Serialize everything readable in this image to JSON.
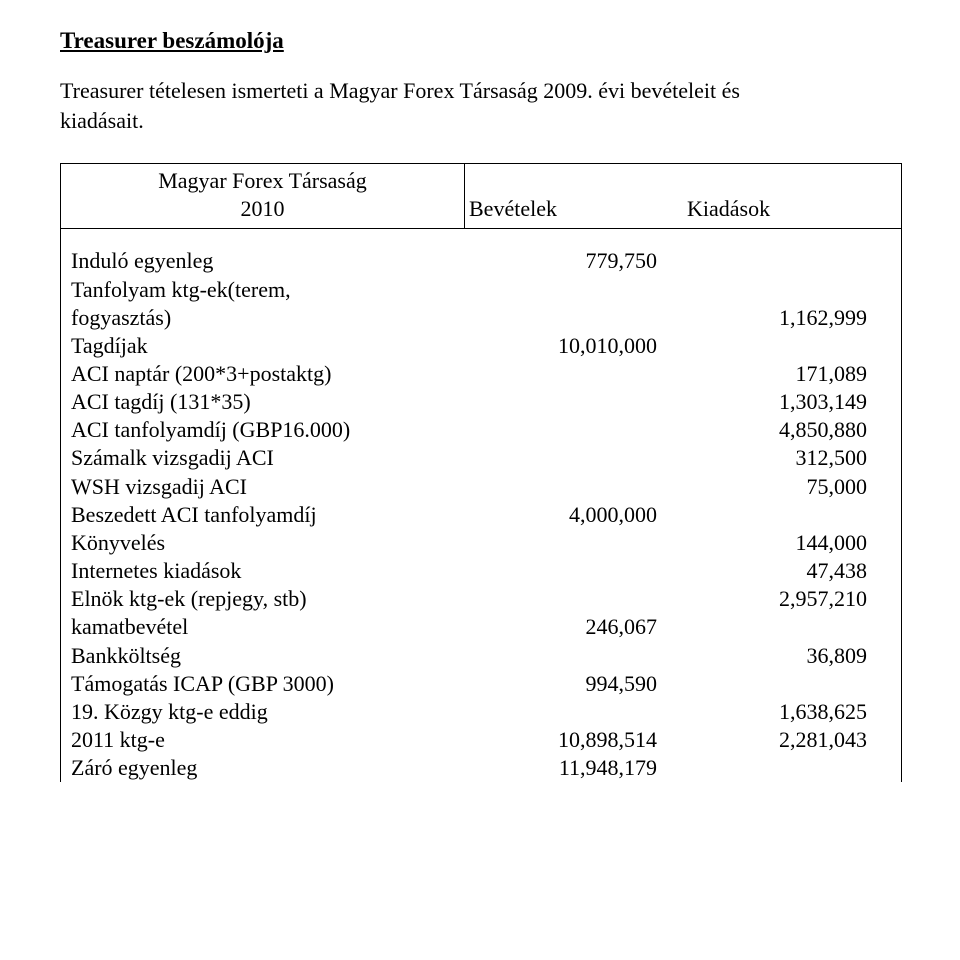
{
  "title": "Treasurer beszámolója",
  "intro_line1": "Treasurer  tételesen  ismerteti  a  Magyar  Forex  Társaság  2009.  évi  bevételeit  és",
  "intro_line2": "kiadásait.",
  "header": {
    "org": "Magyar Forex Társaság",
    "year": "2010",
    "col_bev": "Bevételek",
    "col_kia": "Kiadások"
  },
  "rows": [
    {
      "label": "Induló egyenleg",
      "bev": "779,750",
      "kia": ""
    },
    {
      "label": "Tanfolyam ktg-ek(terem,",
      "bev": "",
      "kia": ""
    },
    {
      "label": "fogyasztás)",
      "bev": "",
      "kia": "1,162,999"
    },
    {
      "label": "Tagdíjak",
      "bev": "10,010,000",
      "kia": ""
    },
    {
      "label": "ACI naptár (200*3+postaktg)",
      "bev": "",
      "kia": "171,089"
    },
    {
      "label": "ACI tagdíj (131*35)",
      "bev": "",
      "kia": "1,303,149"
    },
    {
      "label": "ACI tanfolyamdíj (GBP16.000)",
      "bev": "",
      "kia": "4,850,880"
    },
    {
      "label": "Számalk vizsgadij  ACI",
      "bev": "",
      "kia": "312,500"
    },
    {
      "label": "WSH vizsgadij  ACI",
      "bev": "",
      "kia": "75,000"
    },
    {
      "label": "Beszedett ACI tanfolyamdíj",
      "bev": "4,000,000",
      "kia": ""
    },
    {
      "label": "Könyvelés",
      "bev": "",
      "kia": "144,000"
    },
    {
      "label": "Internetes kiadások",
      "bev": "",
      "kia": "47,438"
    },
    {
      "label": "Elnök ktg-ek (repjegy, stb)",
      "bev": "",
      "kia": "2,957,210"
    },
    {
      "label": "kamatbevétel",
      "bev": "246,067",
      "kia": ""
    },
    {
      "label": "Bankköltség",
      "bev": "",
      "kia": "36,809"
    },
    {
      "label": "Támogatás ICAP (GBP 3000)",
      "bev": "994,590",
      "kia": ""
    },
    {
      "label": "19. Közgy ktg-e eddig",
      "bev": "",
      "kia": "1,638,625"
    },
    {
      "label": "2011 ktg-e",
      "bev": "10,898,514",
      "kia": "2,281,043"
    },
    {
      "label": "Záró egyenleg",
      "bev": "11,948,179",
      "kia": ""
    }
  ]
}
